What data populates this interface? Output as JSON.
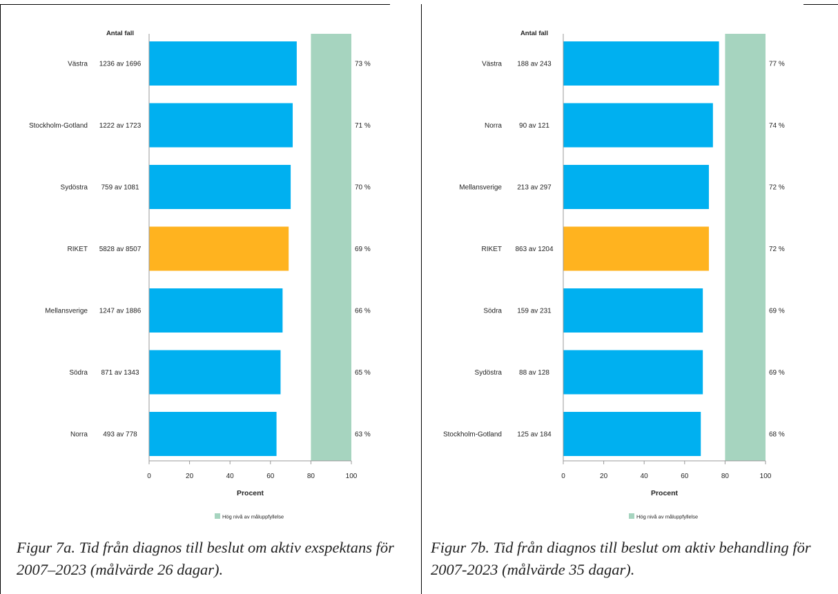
{
  "colors": {
    "bar": "#00b0f0",
    "highlight_bar": "#ffb31f",
    "target_band": "#a6d4bf",
    "axis": "#999999",
    "text": "#222222"
  },
  "panels": [
    {
      "caption": "Figur 7a. Tid från diagnos till beslut om aktiv exspektans för 2007–2023 (målvärde 26 dagar)."
    },
    {
      "caption": "Figur 7b. Tid från diagnos till beslut om aktiv behandling för 2007-2023 (målvärde 35 dagar)."
    }
  ],
  "chart_data": [
    {
      "type": "bar",
      "orientation": "horizontal",
      "count_header": "Antal fall",
      "xlabel": "Procent",
      "xlim": [
        0,
        100
      ],
      "xticks": [
        "0",
        "20",
        "40",
        "60",
        "80",
        "100"
      ],
      "target_band": [
        80,
        100
      ],
      "legend": "Hög nivå av måluppfyllelse",
      "legend_position": "bottom-center",
      "categories": [
        "Västra",
        "Stockholm-Gotland",
        "Sydöstra",
        "RIKET",
        "Mellansverige",
        "Södra",
        "Norra"
      ],
      "counts": [
        "1236 av 1696",
        "1222 av 1723",
        "759 av 1081",
        "5828 av 8507",
        "1247 av 1886",
        "871 av 1343",
        "493 av 778"
      ],
      "values": [
        73,
        71,
        70,
        69,
        66,
        65,
        63
      ],
      "value_labels": [
        "73 %",
        "71 %",
        "70 %",
        "69 %",
        "66 %",
        "65 %",
        "63 %"
      ],
      "highlight": [
        "RIKET"
      ]
    },
    {
      "type": "bar",
      "orientation": "horizontal",
      "count_header": "Antal fall",
      "xlabel": "Procent",
      "xlim": [
        0,
        100
      ],
      "xticks": [
        "0",
        "20",
        "40",
        "60",
        "80",
        "100"
      ],
      "target_band": [
        80,
        100
      ],
      "legend": "Hög nivå av måluppfyllelse",
      "legend_position": "bottom-center",
      "categories": [
        "Västra",
        "Norra",
        "Mellansverige",
        "RIKET",
        "Södra",
        "Sydöstra",
        "Stockholm-Gotland"
      ],
      "counts": [
        "188 av 243",
        "90 av 121",
        "213 av 297",
        "863 av 1204",
        "159 av 231",
        "88 av 128",
        "125 av 184"
      ],
      "values": [
        77,
        74,
        72,
        72,
        69,
        69,
        68
      ],
      "value_labels": [
        "77 %",
        "74 %",
        "72 %",
        "72 %",
        "69 %",
        "69 %",
        "68 %"
      ],
      "highlight": [
        "RIKET"
      ]
    }
  ]
}
